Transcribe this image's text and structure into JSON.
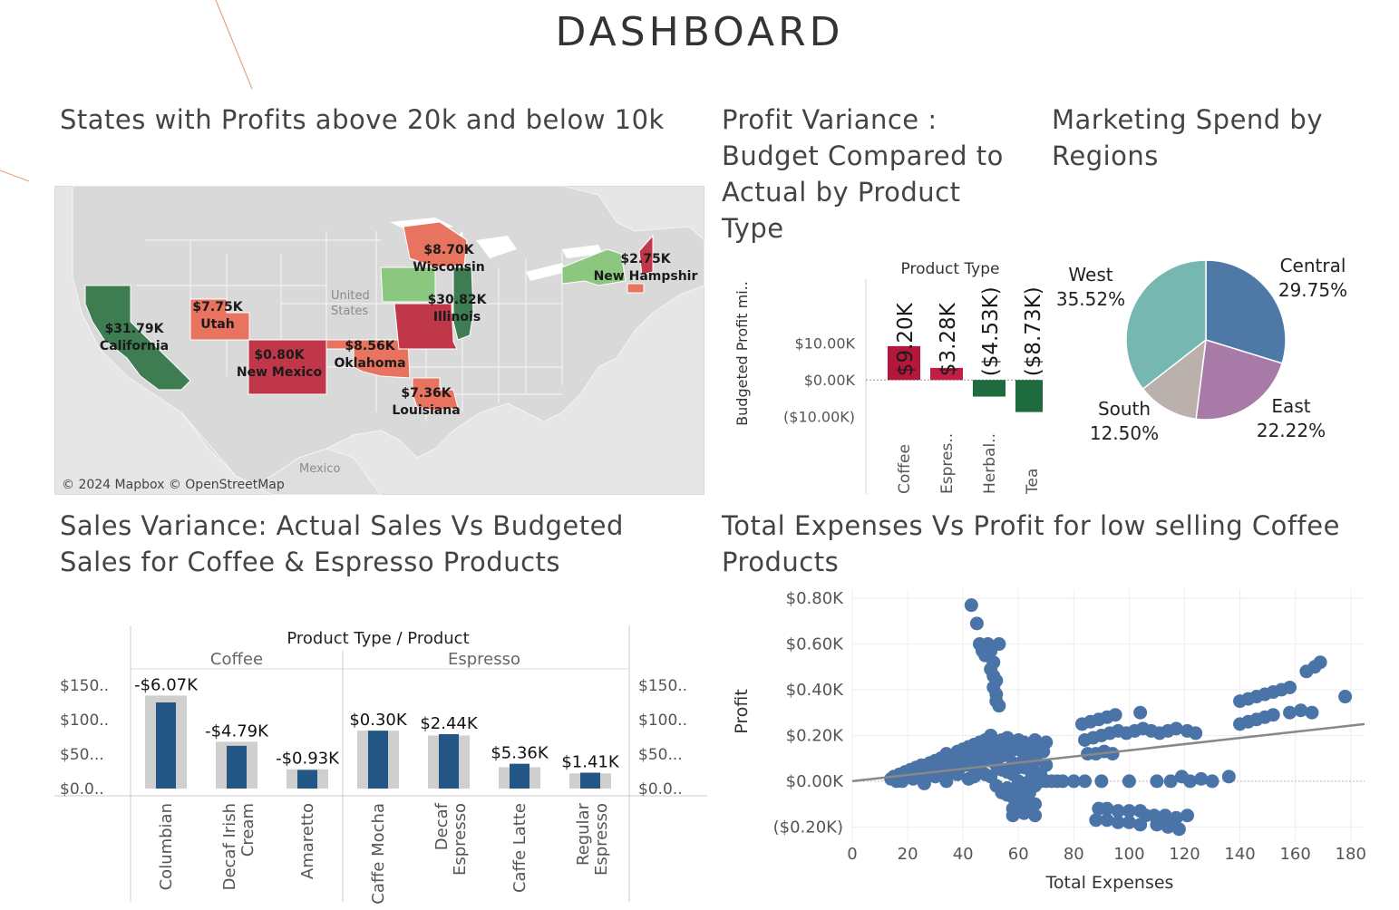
{
  "page": {
    "title": "DASHBOARD",
    "accent": "#e8a37a"
  },
  "panels": {
    "map": {
      "title": "States with Profits above 20k and below 10k",
      "credit": "© 2024 Mapbox © OpenStreetMap",
      "country_labels": [
        "United",
        "States",
        "Mexico"
      ]
    },
    "variance": {
      "title": "Profit Variance : Budget Compared to Actual by Product Type"
    },
    "pie": {
      "title": "Marketing Spend by Regions"
    },
    "sales": {
      "title": "Sales Variance: Actual Sales Vs Budgeted Sales for Coffee & Espresso Products"
    },
    "scatter": {
      "title": "Total Expenses Vs Profit for low selling Coffee Products"
    }
  },
  "chart_data": [
    {
      "type": "map",
      "colors": {
        "high": "#3e7d52",
        "high_light": "#8cc77f",
        "low": "#c0374a",
        "low_light": "#e8735e"
      },
      "states": [
        {
          "name": "California",
          "value": "$31.79K",
          "category": "high"
        },
        {
          "name": "Utah",
          "value": "$7.75K",
          "category": "low_light"
        },
        {
          "name": "New Mexico",
          "value": "$0.80K",
          "category": "low"
        },
        {
          "name": "Oklahoma",
          "value": "$8.56K",
          "category": "low_light"
        },
        {
          "name": "Louisiana",
          "value": "$7.36K",
          "category": "low_light"
        },
        {
          "name": "Wisconsin",
          "value": "$8.70K",
          "category": "low_light"
        },
        {
          "name": "Illinois",
          "value": "$30.82K",
          "category": "high"
        },
        {
          "name": "New Hampshire",
          "display": "New Hampshir",
          "value": "$2.75K",
          "category": "low"
        }
      ]
    },
    {
      "type": "bar",
      "header": "Product Type",
      "ylabel": "Budgeted Profit mi..",
      "ytick_labels": [
        "$10.00K",
        "$0.00K",
        "($10.00K)"
      ],
      "yticks": [
        10,
        0,
        -10
      ],
      "ylim": [
        -15,
        22
      ],
      "categories": [
        "Coffee",
        "Espres..",
        "Herbal..",
        "Tea"
      ],
      "values": [
        9.2,
        3.28,
        -4.53,
        -8.73
      ],
      "labels": [
        "$9.20K",
        "$3.28K",
        "($4.53K)",
        "($8.73K)"
      ],
      "colors": [
        "#b5173b",
        "#c21f44",
        "#1d6b3e",
        "#1d6b3e"
      ]
    },
    {
      "type": "pie",
      "slices": [
        {
          "name": "Central",
          "value": 29.75,
          "label": "29.75%",
          "color": "#4e79a7"
        },
        {
          "name": "East",
          "value": 22.22,
          "label": "22.22%",
          "color": "#a87aa8"
        },
        {
          "name": "South",
          "value": 12.5,
          "label": "12.50%",
          "color": "#bab0ac"
        },
        {
          "name": "West",
          "value": 35.52,
          "label": "35.52%",
          "color": "#76b7b2"
        }
      ]
    },
    {
      "type": "bar",
      "header": "Product Type  /  Product",
      "groups": [
        {
          "name": "Coffee",
          "products": [
            {
              "name": [
                "Columbian"
              ],
              "actual": 125,
              "budget": 135,
              "label": "-$6.07K"
            },
            {
              "name": [
                "Decaf Irish",
                "Cream"
              ],
              "actual": 62,
              "budget": 68,
              "label": "-$4.79K"
            },
            {
              "name": [
                "Amaretto"
              ],
              "actual": 27,
              "budget": 28,
              "label": "-$0.93K"
            }
          ]
        },
        {
          "name": "Espresso",
          "products": [
            {
              "name": [
                "Caffe Mocha"
              ],
              "actual": 84,
              "budget": 84,
              "label": "$0.30K"
            },
            {
              "name": [
                "Decaf",
                "Espresso"
              ],
              "actual": 79,
              "budget": 77,
              "label": "$2.44K"
            },
            {
              "name": [
                "Caffe Latte"
              ],
              "actual": 36,
              "budget": 31,
              "label": "$5.36K"
            },
            {
              "name": [
                "Regular",
                "Espresso"
              ],
              "actual": 23,
              "budget": 22,
              "label": "$1.41K"
            }
          ]
        }
      ],
      "ytick_labels": [
        "$150..",
        "$100..",
        "$50...",
        "$0.0.."
      ],
      "yticks": [
        150,
        100,
        50,
        0
      ],
      "ylim": [
        0,
        150
      ],
      "colors": {
        "actual": "#235685",
        "budget": "#cfcfcf"
      }
    },
    {
      "type": "scatter",
      "xlabel": "Total Expenses",
      "ylabel": "Profit",
      "xlim": [
        0,
        185
      ],
      "ylim": [
        -0.27,
        0.84
      ],
      "xticks": [
        0,
        20,
        40,
        60,
        80,
        100,
        120,
        140,
        160,
        180
      ],
      "ytick_labels": [
        "$0.80K",
        "$0.60K",
        "$0.40K",
        "$0.20K",
        "$0.00K",
        "($0.20K)"
      ],
      "yticks": [
        0.8,
        0.6,
        0.4,
        0.2,
        0,
        -0.2
      ],
      "trend": {
        "x": [
          0,
          185
        ],
        "y": [
          0.0,
          0.25
        ]
      },
      "color": "#4a74a8",
      "points": [
        [
          14,
          0.01
        ],
        [
          15,
          0.02
        ],
        [
          16,
          0.0
        ],
        [
          17,
          0.03
        ],
        [
          18,
          0.01
        ],
        [
          19,
          0.04
        ],
        [
          20,
          0.02
        ],
        [
          21,
          0.05
        ],
        [
          22,
          0.03
        ],
        [
          23,
          0.06
        ],
        [
          24,
          0.04
        ],
        [
          25,
          0.07
        ],
        [
          26,
          0.05
        ],
        [
          27,
          0.02
        ],
        [
          28,
          0.08
        ],
        [
          29,
          0.06
        ],
        [
          30,
          0.09
        ],
        [
          31,
          0.04
        ],
        [
          32,
          0.1
        ],
        [
          33,
          0.07
        ],
        [
          34,
          0.12
        ],
        [
          35,
          0.05
        ],
        [
          36,
          0.11
        ],
        [
          37,
          0.08
        ],
        [
          38,
          0.13
        ],
        [
          39,
          0.06
        ],
        [
          40,
          0.14
        ],
        [
          41,
          0.09
        ],
        [
          42,
          0.15
        ],
        [
          43,
          0.1
        ],
        [
          44,
          0.16
        ],
        [
          45,
          0.12
        ],
        [
          46,
          0.17
        ],
        [
          47,
          0.11
        ],
        [
          48,
          0.18
        ],
        [
          49,
          0.13
        ],
        [
          50,
          0.2
        ],
        [
          51,
          0.14
        ],
        [
          52,
          0.16
        ],
        [
          53,
          0.12
        ],
        [
          54,
          0.18
        ],
        [
          55,
          0.15
        ],
        [
          56,
          0.19
        ],
        [
          57,
          0.13
        ],
        [
          58,
          0.17
        ],
        [
          59,
          0.14
        ],
        [
          60,
          0.18
        ],
        [
          61,
          0.15
        ],
        [
          62,
          0.17
        ],
        [
          63,
          0.13
        ],
        [
          64,
          0.16
        ],
        [
          65,
          0.14
        ],
        [
          66,
          0.18
        ],
        [
          67,
          0.12
        ],
        [
          68,
          0.16
        ],
        [
          69,
          0.13
        ],
        [
          70,
          0.17
        ],
        [
          18,
          0.0
        ],
        [
          22,
          0.01
        ],
        [
          26,
          -0.01
        ],
        [
          30,
          0.02
        ],
        [
          34,
          0.0
        ],
        [
          38,
          0.03
        ],
        [
          42,
          0.01
        ],
        [
          46,
          0.04
        ],
        [
          50,
          0.02
        ],
        [
          54,
          0.05
        ],
        [
          58,
          0.03
        ],
        [
          62,
          0.06
        ],
        [
          66,
          0.04
        ],
        [
          70,
          0.07
        ],
        [
          30,
          0.05
        ],
        [
          34,
          0.08
        ],
        [
          38,
          0.1
        ],
        [
          42,
          0.07
        ],
        [
          46,
          0.12
        ],
        [
          50,
          0.09
        ],
        [
          54,
          0.11
        ],
        [
          58,
          0.08
        ],
        [
          62,
          0.1
        ],
        [
          66,
          0.09
        ],
        [
          44,
          0.02
        ],
        [
          46,
          0.06
        ],
        [
          48,
          0.03
        ],
        [
          52,
          0.07
        ],
        [
          56,
          0.04
        ],
        [
          60,
          0.06
        ],
        [
          64,
          0.05
        ],
        [
          68,
          0.03
        ],
        [
          52,
          -0.02
        ],
        [
          54,
          -0.05
        ],
        [
          56,
          -0.03
        ],
        [
          58,
          -0.07
        ],
        [
          60,
          -0.04
        ],
        [
          62,
          -0.08
        ],
        [
          64,
          -0.05
        ],
        [
          66,
          -0.1
        ],
        [
          56,
          -0.06
        ],
        [
          58,
          -0.12
        ],
        [
          60,
          -0.09
        ],
        [
          62,
          -0.11
        ],
        [
          58,
          -0.15
        ],
        [
          62,
          -0.14
        ],
        [
          64,
          -0.13
        ],
        [
          66,
          -0.15
        ],
        [
          60,
          0.0
        ],
        [
          62,
          -0.01
        ],
        [
          64,
          0.0
        ],
        [
          66,
          -0.02
        ],
        [
          68,
          0.0
        ],
        [
          70,
          0.0
        ],
        [
          72,
          0.0
        ],
        [
          74,
          0.0
        ],
        [
          76,
          0.0
        ],
        [
          80,
          0.0
        ],
        [
          84,
          0.0
        ],
        [
          43,
          0.77
        ],
        [
          45,
          0.69
        ],
        [
          46,
          0.6
        ],
        [
          47,
          0.57
        ],
        [
          48,
          0.55
        ],
        [
          49,
          0.6
        ],
        [
          50,
          0.57
        ],
        [
          51,
          0.52
        ],
        [
          50,
          0.49
        ],
        [
          51,
          0.46
        ],
        [
          52,
          0.44
        ],
        [
          51,
          0.41
        ],
        [
          52,
          0.38
        ],
        [
          52,
          0.35
        ],
        [
          53,
          0.33
        ],
        [
          53,
          0.6
        ],
        [
          83,
          0.25
        ],
        [
          86,
          0.26
        ],
        [
          89,
          0.27
        ],
        [
          92,
          0.28
        ],
        [
          95,
          0.29
        ],
        [
          104,
          0.3
        ],
        [
          84,
          0.18
        ],
        [
          87,
          0.19
        ],
        [
          90,
          0.2
        ],
        [
          93,
          0.21
        ],
        [
          96,
          0.22
        ],
        [
          99,
          0.21
        ],
        [
          102,
          0.22
        ],
        [
          105,
          0.23
        ],
        [
          108,
          0.22
        ],
        [
          111,
          0.21
        ],
        [
          114,
          0.22
        ],
        [
          117,
          0.23
        ],
        [
          121,
          0.22
        ],
        [
          124,
          0.21
        ],
        [
          85,
          0.12
        ],
        [
          88,
          0.12
        ],
        [
          91,
          0.13
        ],
        [
          94,
          0.12
        ],
        [
          90,
          0.0
        ],
        [
          100,
          0.0
        ],
        [
          110,
          0.0
        ],
        [
          115,
          0.0
        ],
        [
          119,
          0.02
        ],
        [
          122,
          0.0
        ],
        [
          126,
          0.01
        ],
        [
          130,
          0.0
        ],
        [
          136,
          0.02
        ],
        [
          89,
          -0.12
        ],
        [
          92,
          -0.12
        ],
        [
          96,
          -0.13
        ],
        [
          100,
          -0.13
        ],
        [
          104,
          -0.13
        ],
        [
          88,
          -0.17
        ],
        [
          92,
          -0.17
        ],
        [
          96,
          -0.18
        ],
        [
          100,
          -0.18
        ],
        [
          104,
          -0.19
        ],
        [
          109,
          -0.15
        ],
        [
          113,
          -0.15
        ],
        [
          117,
          -0.16
        ],
        [
          121,
          -0.15
        ],
        [
          110,
          -0.19
        ],
        [
          114,
          -0.2
        ],
        [
          118,
          -0.21
        ],
        [
          106,
          -0.15
        ],
        [
          140,
          0.35
        ],
        [
          143,
          0.36
        ],
        [
          146,
          0.37
        ],
        [
          149,
          0.38
        ],
        [
          152,
          0.39
        ],
        [
          155,
          0.4
        ],
        [
          158,
          0.41
        ],
        [
          140,
          0.25
        ],
        [
          143,
          0.26
        ],
        [
          146,
          0.27
        ],
        [
          149,
          0.28
        ],
        [
          152,
          0.29
        ],
        [
          158,
          0.3
        ],
        [
          162,
          0.31
        ],
        [
          166,
          0.3
        ],
        [
          164,
          0.48
        ],
        [
          167,
          0.5
        ],
        [
          169,
          0.52
        ],
        [
          178,
          0.37
        ]
      ]
    }
  ]
}
